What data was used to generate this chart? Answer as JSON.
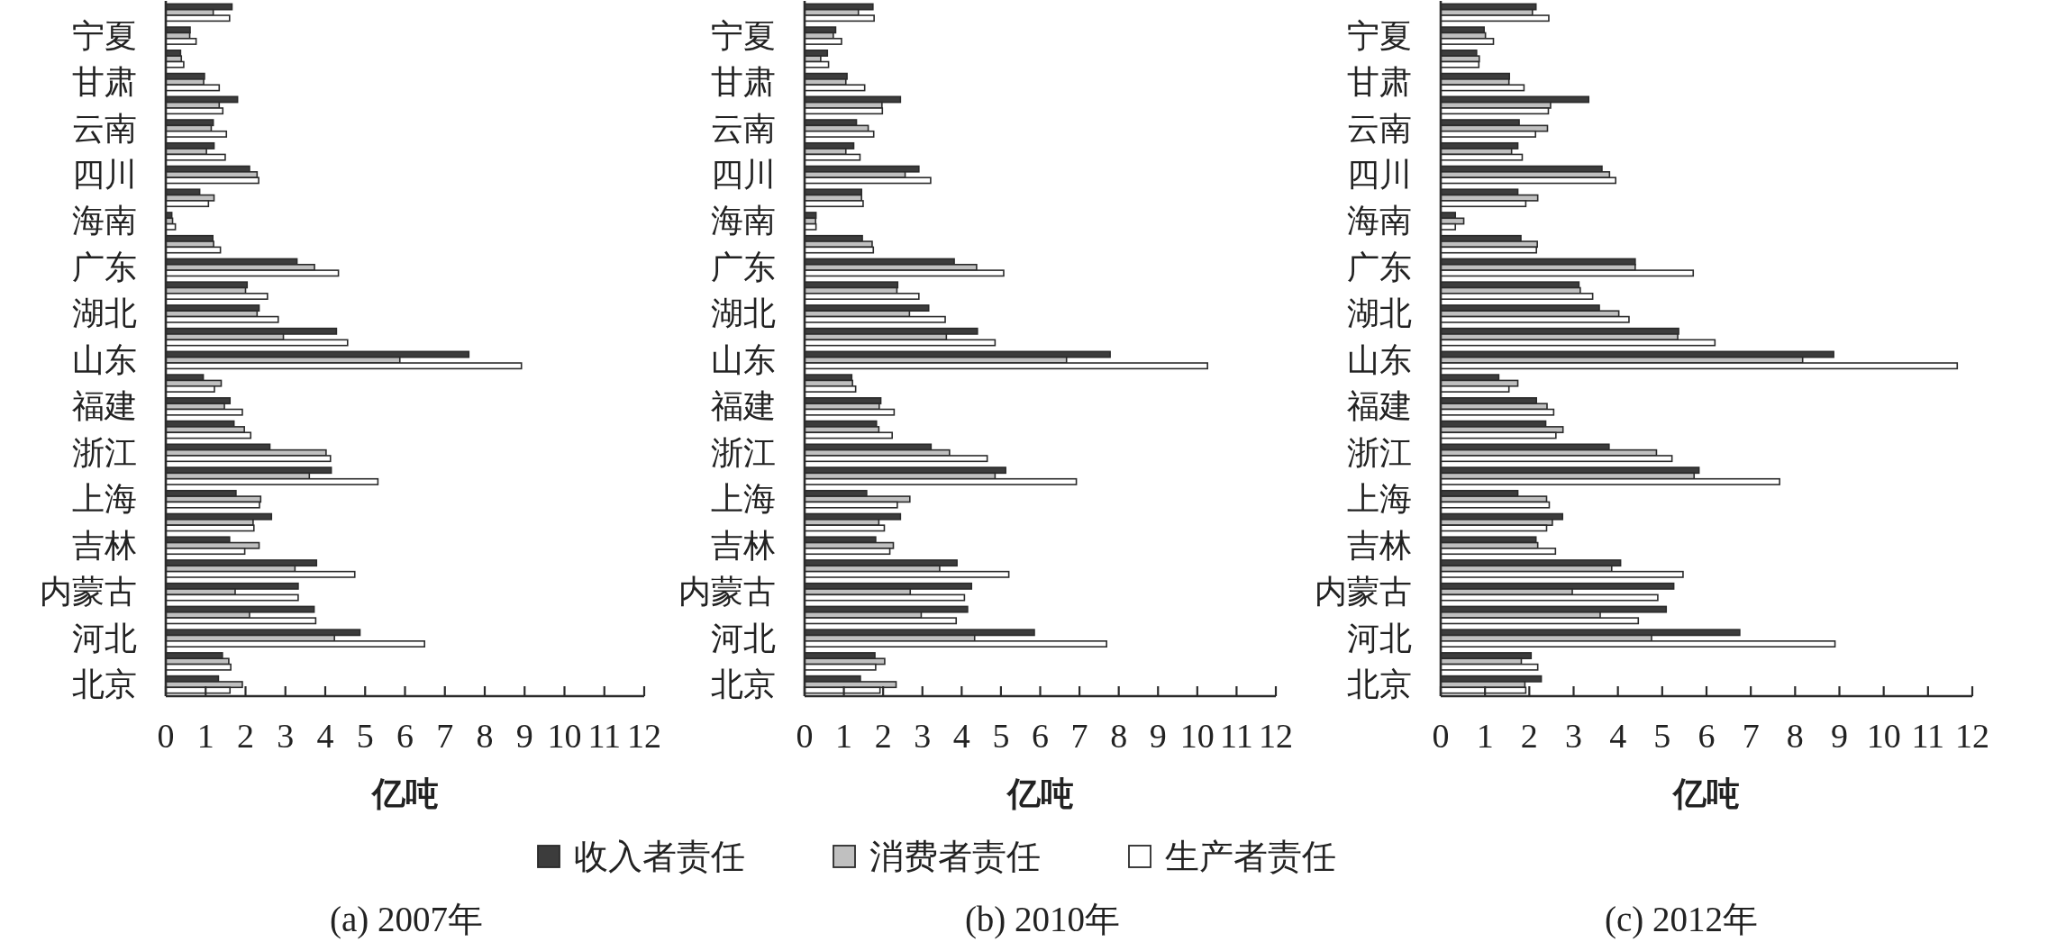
{
  "chart_data": [
    {
      "type": "bar",
      "orientation": "horizontal",
      "title": "(a) 2007年",
      "xlabel": "亿吨",
      "legend": "bottom",
      "xlim": [
        0,
        12
      ],
      "xticks": [
        0,
        1,
        2,
        3,
        4,
        5,
        6,
        7,
        8,
        9,
        10,
        11,
        12
      ],
      "categories": [
        null,
        "宁夏",
        null,
        "甘肃",
        null,
        "云南",
        null,
        "四川",
        null,
        "海南",
        null,
        "广东",
        null,
        "湖北",
        null,
        "山东",
        null,
        "福建",
        null,
        "浙江",
        null,
        "上海",
        null,
        "吉林",
        null,
        "内蒙古",
        null,
        "河北",
        null,
        "北京"
      ],
      "series": [
        {
          "name": "收入者责任",
          "color": "#3c3c3c",
          "values": [
            1.66,
            0.61,
            0.37,
            0.97,
            1.8,
            1.19,
            1.21,
            2.1,
            0.85,
            0.15,
            1.18,
            3.29,
            2.04,
            2.34,
            4.28,
            7.6,
            0.94,
            1.61,
            1.71,
            2.61,
            4.15,
            1.76,
            2.65,
            1.6,
            3.78,
            3.32,
            3.72,
            4.87,
            1.42,
            1.32
          ]
        },
        {
          "name": "消费者责任",
          "color": "#c0c0c0",
          "values": [
            1.19,
            0.6,
            0.39,
            0.95,
            1.34,
            1.14,
            1.02,
            2.29,
            1.21,
            0.17,
            1.2,
            3.73,
            2.0,
            2.29,
            2.95,
            5.87,
            1.39,
            1.47,
            1.97,
            4.02,
            3.6,
            2.38,
            2.19,
            2.34,
            3.24,
            1.74,
            2.1,
            4.23,
            1.58,
            1.92
          ]
        },
        {
          "name": "生产者责任",
          "color": "#ffffff",
          "values": [
            1.6,
            0.76,
            0.45,
            1.34,
            1.43,
            1.52,
            1.49,
            2.33,
            1.07,
            0.24,
            1.37,
            4.33,
            2.55,
            2.82,
            4.56,
            8.92,
            1.22,
            1.92,
            2.13,
            4.13,
            5.32,
            2.35,
            2.21,
            1.98,
            4.74,
            3.32,
            3.76,
            6.49,
            1.63,
            1.61
          ]
        }
      ]
    },
    {
      "type": "bar",
      "orientation": "horizontal",
      "title": "(b) 2010年",
      "xlabel": "亿吨",
      "xlim": [
        0,
        12
      ],
      "xticks": [
        0,
        1,
        2,
        3,
        4,
        5,
        6,
        7,
        8,
        9,
        10,
        11,
        12
      ],
      "categories": [
        null,
        "宁夏",
        null,
        "甘肃",
        null,
        "云南",
        null,
        "四川",
        null,
        "海南",
        null,
        "广东",
        null,
        "湖北",
        null,
        "山东",
        null,
        "福建",
        null,
        "浙江",
        null,
        "上海",
        null,
        "吉林",
        null,
        "内蒙古",
        null,
        "河北",
        null,
        "北京"
      ],
      "series": [
        {
          "name": "收入者责任",
          "color": "#3c3c3c",
          "values": [
            1.74,
            0.79,
            0.58,
            1.08,
            2.44,
            1.32,
            1.25,
            2.91,
            1.45,
            0.29,
            1.47,
            3.81,
            2.37,
            3.16,
            4.4,
            7.78,
            1.2,
            1.94,
            1.83,
            3.22,
            5.12,
            1.58,
            2.44,
            1.81,
            3.88,
            4.25,
            4.15,
            5.85,
            1.79,
            1.42
          ]
        },
        {
          "name": "消费者责任",
          "color": "#c0c0c0",
          "values": [
            1.37,
            0.73,
            0.41,
            1.05,
            1.97,
            1.62,
            1.05,
            2.56,
            1.45,
            0.28,
            1.72,
            4.38,
            2.35,
            2.67,
            3.61,
            6.67,
            1.22,
            1.9,
            1.89,
            3.69,
            4.85,
            2.68,
            1.89,
            2.26,
            3.44,
            2.69,
            2.97,
            4.33,
            2.04,
            2.33
          ]
        },
        {
          "name": "生产者责任",
          "color": "#ffffff",
          "values": [
            1.77,
            0.94,
            0.61,
            1.53,
            1.98,
            1.76,
            1.41,
            3.21,
            1.49,
            0.29,
            1.75,
            5.07,
            2.91,
            3.58,
            4.85,
            10.26,
            1.3,
            2.28,
            2.23,
            4.65,
            6.92,
            2.36,
            2.03,
            2.17,
            5.2,
            4.07,
            3.86,
            7.69,
            1.81,
            1.92
          ]
        }
      ]
    },
    {
      "type": "bar",
      "orientation": "horizontal",
      "title": "(c) 2012年",
      "xlabel": "亿吨",
      "xlim": [
        0,
        12
      ],
      "xticks": [
        0,
        1,
        2,
        3,
        4,
        5,
        6,
        7,
        8,
        9,
        10,
        11,
        12
      ],
      "categories": [
        null,
        "宁夏",
        null,
        "甘肃",
        null,
        "云南",
        null,
        "四川",
        null,
        "海南",
        null,
        "广东",
        null,
        "湖北",
        null,
        "山东",
        null,
        "福建",
        null,
        "浙江",
        null,
        "上海",
        null,
        "吉林",
        null,
        "内蒙古",
        null,
        "河北",
        null,
        "北京"
      ],
      "series": [
        {
          "name": "收入者责任",
          "color": "#3c3c3c",
          "values": [
            2.15,
            0.98,
            0.81,
            1.55,
            3.34,
            1.77,
            1.74,
            3.64,
            1.74,
            0.33,
            1.81,
            4.39,
            3.12,
            3.58,
            5.37,
            8.87,
            1.31,
            2.16,
            2.37,
            3.8,
            5.83,
            1.74,
            2.75,
            2.15,
            4.06,
            5.26,
            5.09,
            6.75,
            2.04,
            2.27
          ]
        },
        {
          "name": "消费者责任",
          "color": "#c0c0c0",
          "values": [
            2.07,
            1.01,
            0.87,
            1.54,
            2.48,
            2.41,
            1.6,
            3.81,
            2.19,
            0.52,
            2.18,
            4.39,
            3.15,
            4.02,
            5.35,
            8.17,
            1.74,
            2.4,
            2.76,
            4.87,
            5.72,
            2.39,
            2.52,
            2.19,
            3.86,
            2.97,
            3.6,
            4.76,
            1.82,
            1.9
          ]
        },
        {
          "name": "生产者责任",
          "color": "#ffffff",
          "values": [
            2.44,
            1.19,
            0.86,
            1.88,
            2.43,
            2.14,
            1.84,
            3.95,
            1.92,
            0.33,
            2.16,
            5.7,
            3.43,
            4.25,
            6.19,
            11.66,
            1.54,
            2.55,
            2.6,
            5.22,
            7.65,
            2.45,
            2.39,
            2.59,
            5.47,
            4.9,
            4.46,
            8.9,
            2.19,
            1.92
          ]
        }
      ]
    }
  ]
}
